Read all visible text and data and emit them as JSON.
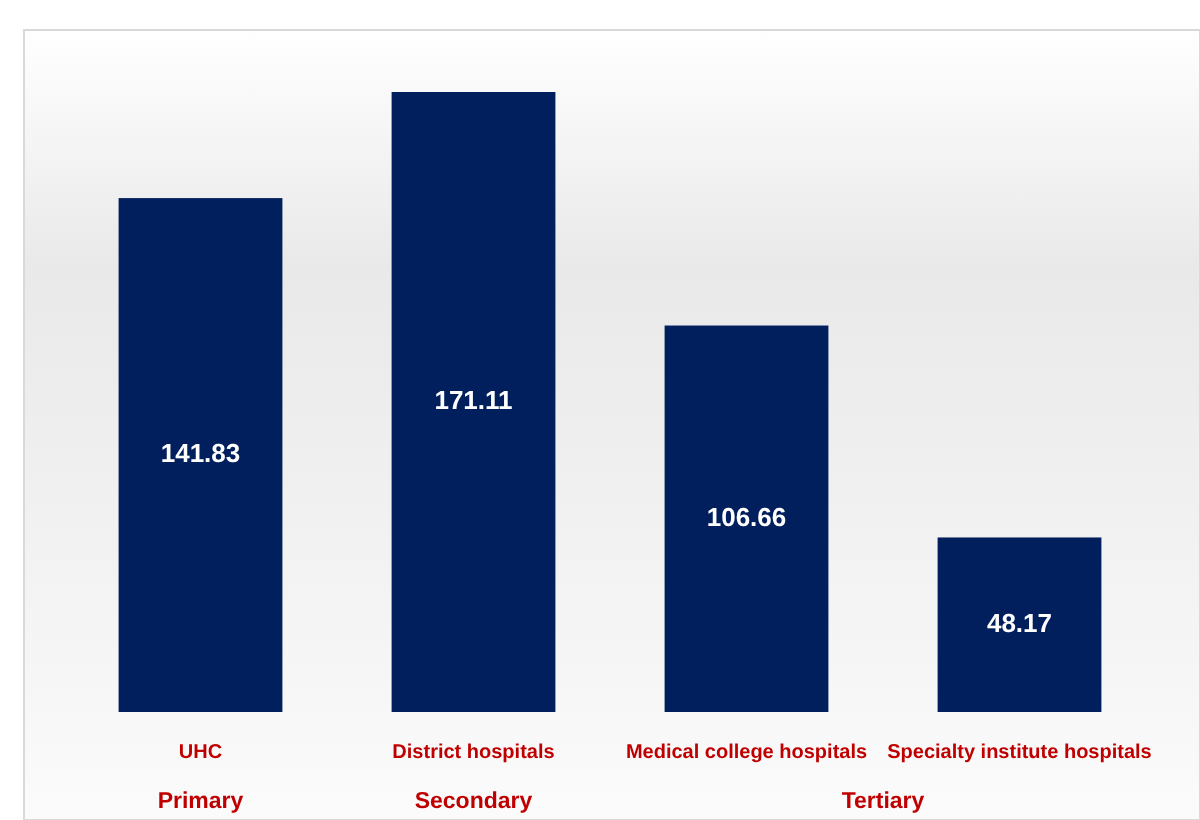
{
  "chart_data": {
    "type": "bar",
    "categories": [
      "UHC",
      "District hospitals",
      "Medical college hospitals",
      "Specialty institute hospitals"
    ],
    "values": [
      141.83,
      171.11,
      106.66,
      48.17
    ],
    "color": "#001f5c",
    "data_labels": true,
    "annotations": [
      "Primary",
      "Secondary",
      "Tertiary"
    ]
  }
}
